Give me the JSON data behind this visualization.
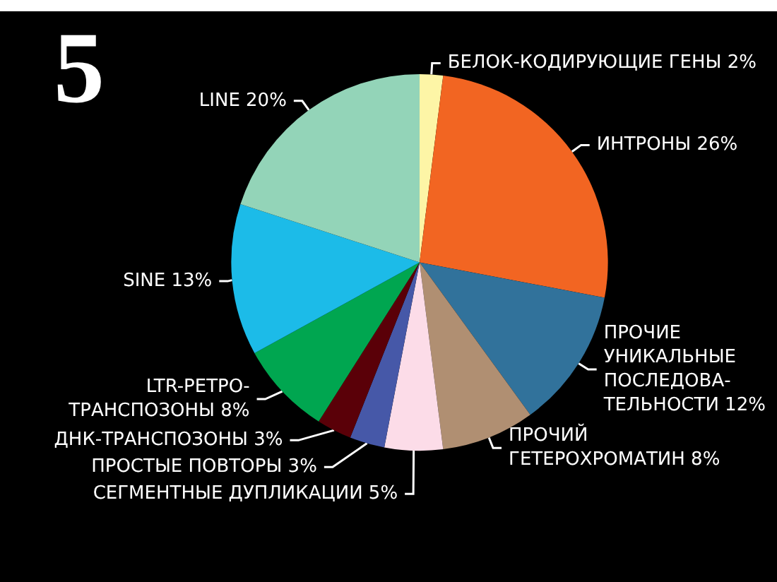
{
  "chart_data": {
    "type": "pie",
    "categories": [
      "БЕЛОК-КОДИРУЮЩИЕ ГЕНЫ",
      "ИНТРОНЫ",
      "ПРОЧИЕ\nУНИКАЛЬНЫЕ\nПОСЛЕДОВА-\nТЕЛЬНОСТИ",
      "ПРОЧИЙ\nГЕТЕРОХРОМАТИН",
      "СЕГМЕНТНЫЕ ДУПЛИКАЦИИ",
      "ПРОСТЫЕ ПОВТОРЫ",
      "ДНК-ТРАНСПОЗОНЫ",
      "LTR-РЕТРО-\nТРАНСПОЗОНЫ",
      "SINE",
      "LINE"
    ],
    "values": [
      2,
      26,
      12,
      8,
      5,
      3,
      3,
      8,
      13,
      20
    ],
    "colors": [
      "#fdf5a6",
      "#f26522",
      "#31729b",
      "#b08f72",
      "#fcdce8",
      "#4658a8",
      "#5a0008",
      "#00a650",
      "#1cbbe8",
      "#93d4b8"
    ],
    "value_labels": [
      "2%",
      "26%",
      "12%",
      "8%",
      "5%",
      "3%",
      "3%",
      "8%",
      "13%",
      "20%"
    ],
    "annotations": [
      "5"
    ]
  }
}
